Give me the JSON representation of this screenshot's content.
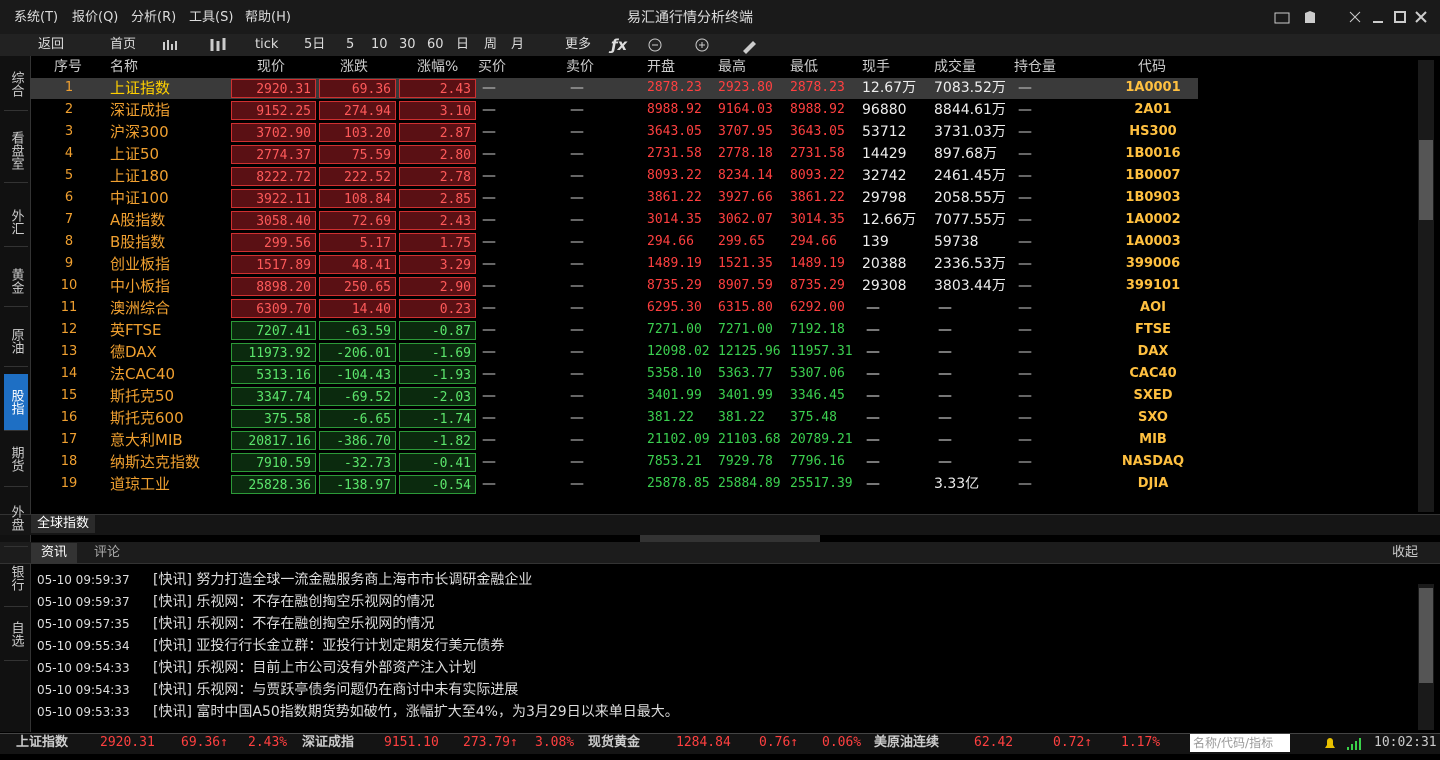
{
  "window": {
    "title": "易汇通行情分析终端",
    "menu": [
      "系统(T)",
      "报价(Q)",
      "分析(R)",
      "工具(S)",
      "帮助(H)"
    ]
  },
  "toolbar": [
    "返回",
    "首页",
    "tick",
    "5日",
    "5",
    "10",
    "30",
    "60",
    "日",
    "周",
    "月",
    "更多"
  ],
  "sidebar": [
    "综合",
    "看盘室",
    "外汇",
    "黄金",
    "原油",
    "股指",
    "期货",
    "外盘",
    "银行",
    "自选"
  ],
  "table": {
    "headers": [
      "序号",
      "名称",
      "现价",
      "涨跌",
      "涨幅%",
      "买价",
      "卖价",
      "开盘",
      "最高",
      "最低",
      "现手",
      "成交量",
      "持仓量",
      "代码"
    ],
    "rows": [
      {
        "tone": "up",
        "cells": [
          "1",
          "上证指数",
          "2920.31",
          "69.36",
          "2.43",
          "—",
          "—",
          "2878.23",
          "2923.80",
          "2878.23",
          "12.67万",
          "7083.52万",
          "—",
          "1A0001"
        ]
      },
      {
        "tone": "up",
        "cells": [
          "2",
          "深证成指",
          "9152.25",
          "274.94",
          "3.10",
          "—",
          "—",
          "8988.92",
          "9164.03",
          "8988.92",
          "96880",
          "8844.61万",
          "—",
          "2A01"
        ]
      },
      {
        "tone": "up",
        "cells": [
          "3",
          "沪深300",
          "3702.90",
          "103.20",
          "2.87",
          "—",
          "—",
          "3643.05",
          "3707.95",
          "3643.05",
          "53712",
          "3731.03万",
          "—",
          "HS300"
        ]
      },
      {
        "tone": "up",
        "cells": [
          "4",
          "上证50",
          "2774.37",
          "75.59",
          "2.80",
          "—",
          "—",
          "2731.58",
          "2778.18",
          "2731.58",
          "14429",
          "897.68万",
          "—",
          "1B0016"
        ]
      },
      {
        "tone": "up",
        "cells": [
          "5",
          "上证180",
          "8222.72",
          "222.52",
          "2.78",
          "—",
          "—",
          "8093.22",
          "8234.14",
          "8093.22",
          "32742",
          "2461.45万",
          "—",
          "1B0007"
        ]
      },
      {
        "tone": "up",
        "cells": [
          "6",
          "中证100",
          "3922.11",
          "108.84",
          "2.85",
          "—",
          "—",
          "3861.22",
          "3927.66",
          "3861.22",
          "29798",
          "2058.55万",
          "—",
          "1B0903"
        ]
      },
      {
        "tone": "up",
        "cells": [
          "7",
          "A股指数",
          "3058.40",
          "72.69",
          "2.43",
          "—",
          "—",
          "3014.35",
          "3062.07",
          "3014.35",
          "12.66万",
          "7077.55万",
          "—",
          "1A0002"
        ]
      },
      {
        "tone": "up",
        "cells": [
          "8",
          "B股指数",
          "299.56",
          "5.17",
          "1.75",
          "—",
          "—",
          "294.66",
          "299.65",
          "294.66",
          "139",
          "59738",
          "—",
          "1A0003"
        ]
      },
      {
        "tone": "up",
        "cells": [
          "9",
          "创业板指",
          "1517.89",
          "48.41",
          "3.29",
          "—",
          "—",
          "1489.19",
          "1521.35",
          "1489.19",
          "20388",
          "2336.53万",
          "—",
          "399006"
        ]
      },
      {
        "tone": "up",
        "cells": [
          "10",
          "中小板指",
          "8898.20",
          "250.65",
          "2.90",
          "—",
          "—",
          "8735.29",
          "8907.59",
          "8735.29",
          "29308",
          "3803.44万",
          "—",
          "399101"
        ]
      },
      {
        "tone": "up",
        "cells": [
          "11",
          "澳洲综合",
          "6309.70",
          "14.40",
          "0.23",
          "—",
          "—",
          "6295.30",
          "6315.80",
          "6292.00",
          "—",
          "—",
          "—",
          "AOI"
        ]
      },
      {
        "tone": "down",
        "cells": [
          "12",
          "英FTSE",
          "7207.41",
          "-63.59",
          "-0.87",
          "—",
          "—",
          "7271.00",
          "7271.00",
          "7192.18",
          "—",
          "—",
          "—",
          "FTSE"
        ]
      },
      {
        "tone": "down",
        "cells": [
          "13",
          "德DAX",
          "11973.92",
          "-206.01",
          "-1.69",
          "—",
          "—",
          "12098.02",
          "12125.96",
          "11957.31",
          "—",
          "—",
          "—",
          "DAX"
        ]
      },
      {
        "tone": "down",
        "cells": [
          "14",
          "法CAC40",
          "5313.16",
          "-104.43",
          "-1.93",
          "—",
          "—",
          "5358.10",
          "5363.77",
          "5307.06",
          "—",
          "—",
          "—",
          "CAC40"
        ]
      },
      {
        "tone": "down",
        "cells": [
          "15",
          "斯托克50",
          "3347.74",
          "-69.52",
          "-2.03",
          "—",
          "—",
          "3401.99",
          "3401.99",
          "3346.45",
          "—",
          "—",
          "—",
          "SXED"
        ]
      },
      {
        "tone": "down",
        "cells": [
          "16",
          "斯托克600",
          "375.58",
          "-6.65",
          "-1.74",
          "—",
          "—",
          "381.22",
          "381.22",
          "375.48",
          "—",
          "—",
          "—",
          "SXO"
        ]
      },
      {
        "tone": "down",
        "cells": [
          "17",
          "意大利MIB",
          "20817.16",
          "-386.70",
          "-1.82",
          "—",
          "—",
          "21102.09",
          "21103.68",
          "20789.21",
          "—",
          "—",
          "—",
          "MIB"
        ]
      },
      {
        "tone": "down",
        "cells": [
          "18",
          "纳斯达克指数",
          "7910.59",
          "-32.73",
          "-0.41",
          "—",
          "—",
          "7853.21",
          "7929.78",
          "7796.16",
          "—",
          "—",
          "—",
          "NASDAQ"
        ]
      },
      {
        "tone": "down",
        "cells": [
          "19",
          "道琼工业",
          "25828.36",
          "-138.97",
          "-0.54",
          "—",
          "—",
          "25878.85",
          "25884.89",
          "25517.39",
          "—",
          "3.33亿",
          "—",
          "DJIA"
        ]
      }
    ]
  },
  "sheet_tab": "全球指数",
  "news": {
    "tabs": [
      "资讯",
      "评论"
    ],
    "collapse": "收起",
    "items": [
      {
        "time": "05-10 09:59:37",
        "text": "[快讯] 努力打造全球一流金融服务商上海市市长调研金融企业"
      },
      {
        "time": "05-10 09:59:37",
        "text": "[快讯] 乐视网：不存在融创掏空乐视网的情况"
      },
      {
        "time": "05-10 09:57:35",
        "text": "[快讯] 乐视网：不存在融创掏空乐视网的情况"
      },
      {
        "time": "05-10 09:55:34",
        "text": "[快讯] 亚投行行长金立群：亚投行计划定期发行美元债券"
      },
      {
        "time": "05-10 09:54:33",
        "text": "[快讯] 乐视网：目前上市公司没有外部资产注入计划"
      },
      {
        "time": "05-10 09:54:33",
        "text": "[快讯] 乐视网：与贾跃亭债务问题仍在商讨中未有实际进展"
      },
      {
        "time": "05-10 09:53:33",
        "text": "[快讯] 富时中国A50指数期货势如破竹，涨幅扩大至4%，为3月29日以来单日最大。"
      }
    ]
  },
  "status": {
    "quotes": [
      {
        "name": "上证指数",
        "price": "2920.31",
        "change": "69.36↑",
        "pct": "2.43%"
      },
      {
        "name": "深证成指",
        "price": "9151.10",
        "change": "273.79↑",
        "pct": "3.08%"
      },
      {
        "name": "现货黄金",
        "price": "1284.84",
        "change": "0.76↑",
        "pct": "0.06%"
      },
      {
        "name": "美原油连续",
        "price": "62.42",
        "change": "0.72↑",
        "pct": "1.17%"
      }
    ],
    "search_placeholder": "名称/代码/指标",
    "time": "10:02:31"
  }
}
